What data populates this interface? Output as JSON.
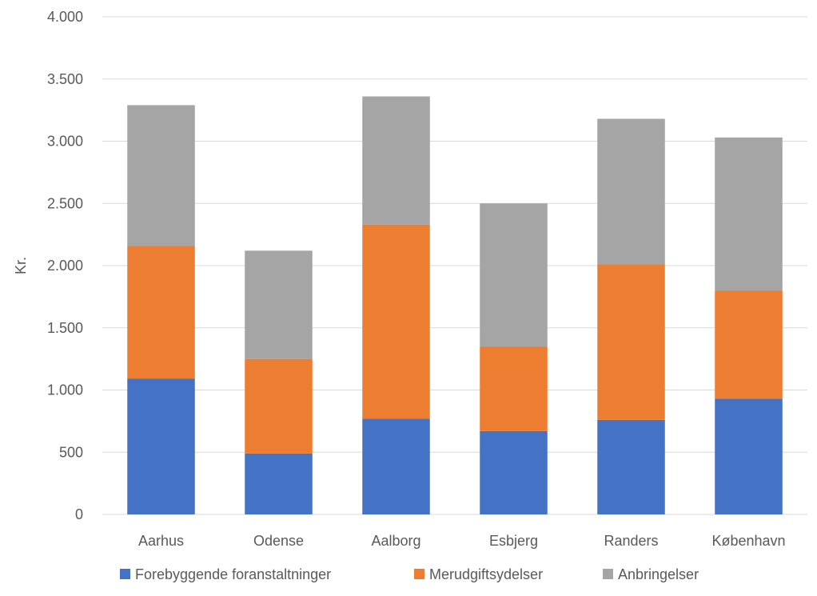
{
  "chart_data": {
    "type": "bar",
    "stacked": true,
    "title": "",
    "xlabel": "",
    "ylabel": "Kr.",
    "ylim": [
      0,
      4000
    ],
    "y_ticks": [
      0,
      500,
      1000,
      1500,
      2000,
      2500,
      3000,
      3500,
      4000
    ],
    "y_tick_labels": [
      "0",
      "500",
      "1.000",
      "1.500",
      "2.000",
      "2.500",
      "3.000",
      "3.500",
      "4.000"
    ],
    "grid": true,
    "legend_position": "bottom",
    "categories": [
      "Aarhus",
      "Odense",
      "Aalborg",
      "Esbjerg",
      "Randers",
      "København"
    ],
    "series": [
      {
        "name": "Forebyggende foranstaltninger",
        "color": "#4472c4",
        "values": [
          1090,
          490,
          770,
          670,
          760,
          930
        ]
      },
      {
        "name": "Merudgiftsydelser",
        "color": "#ed7d31",
        "values": [
          1070,
          760,
          1560,
          680,
          1250,
          870
        ]
      },
      {
        "name": "Anbringelser",
        "color": "#a5a5a5",
        "values": [
          1130,
          870,
          1030,
          1150,
          1170,
          1230
        ]
      }
    ]
  }
}
